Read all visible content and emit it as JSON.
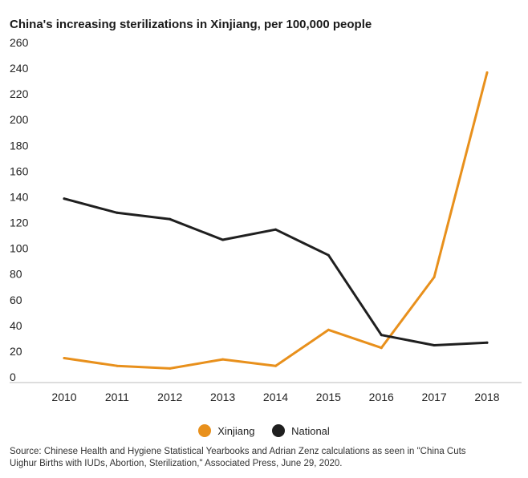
{
  "chart_data": {
    "type": "line",
    "title": "China's increasing sterilizations in Xinjiang, per 100,000 people",
    "categories": [
      "2010",
      "2011",
      "2012",
      "2013",
      "2014",
      "2015",
      "2016",
      "2017",
      "2018"
    ],
    "series": [
      {
        "name": "Xinjiang",
        "color": "#e8901c",
        "values": [
          14,
          8,
          6,
          13,
          8,
          36,
          22,
          77,
          236
        ]
      },
      {
        "name": "National",
        "color": "#1f1f1f",
        "values": [
          138,
          127,
          122,
          106,
          114,
          94,
          32,
          24,
          26
        ]
      }
    ],
    "ylim": [
      0,
      260
    ],
    "yticks": [
      "0",
      "20",
      "40",
      "60",
      "80",
      "100",
      "120",
      "140",
      "160",
      "180",
      "200",
      "220",
      "240",
      "260"
    ],
    "grid": false,
    "legend_position": "bottom-center"
  },
  "source": {
    "line1": "Source: Chinese Health and Hygiene Statistical Yearbooks and Adrian Zenz calculations as seen in \"China Cuts",
    "line2": "Uighur Births with IUDs, Abortion, Sterilization,\" Associated Press, June 29, 2020."
  }
}
